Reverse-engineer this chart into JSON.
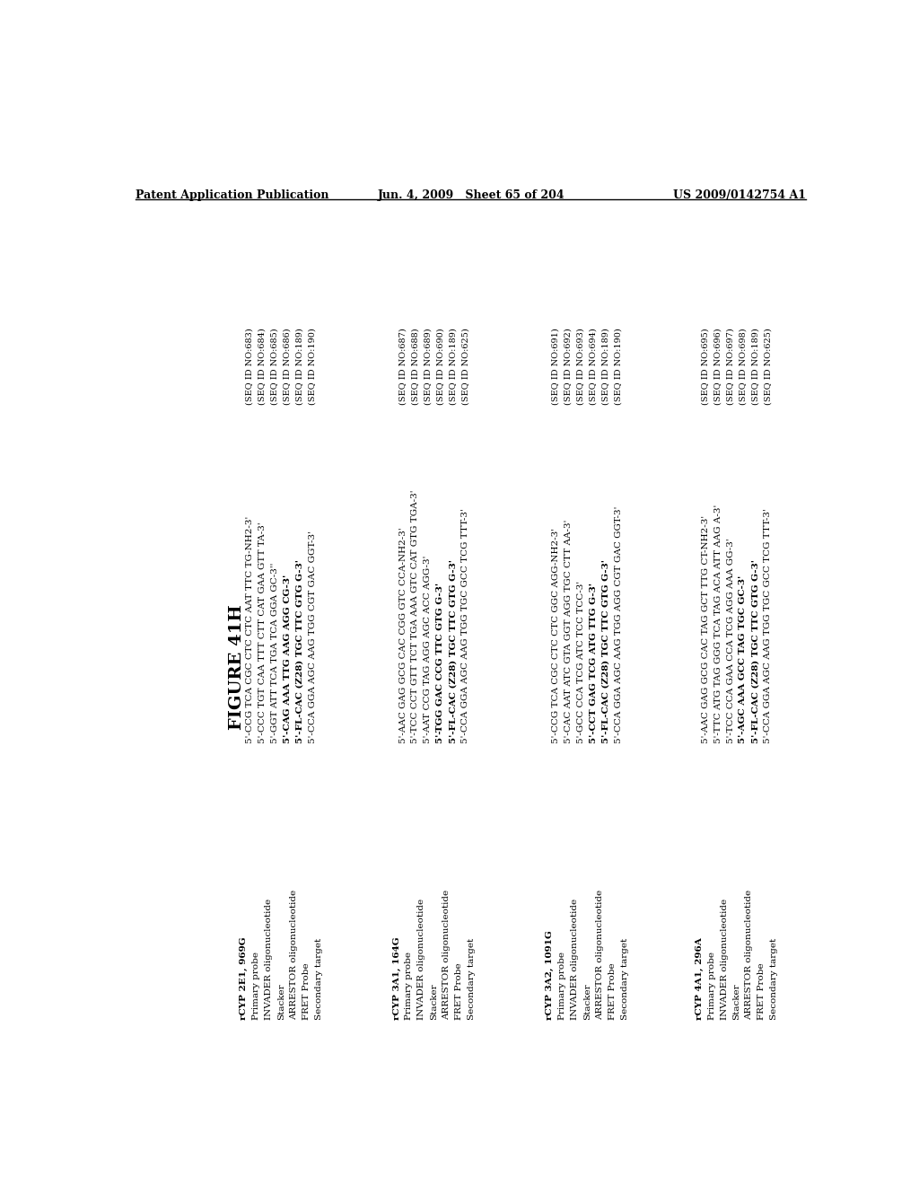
{
  "header_left": "Patent Application Publication",
  "header_center": "Jun. 4, 2009   Sheet 65 of 204",
  "header_right": "US 2009/0142754 A1",
  "figure_title": "FIGURE 41H",
  "sections": [
    {
      "label": "rCYP 2E1, 969G",
      "items": [
        "Primary probe",
        "INVADER oligonucleotide",
        "Stacker",
        "ARRESTOR oligonucleotide",
        "FRET Probe",
        "Secondary target"
      ],
      "sequences": [
        "5'-CCG TCA CGC CTC CTC AAT TTC TG-NH2-3'",
        "5'-CCC TGT CAA TTT CTT CAT GAA GTT TA-3'",
        "5'-GGT ATT TCA TGA TCA GGA GC-3''",
        "5'-CAG AAA TTG AAG AGG CG-3'",
        "5'-FL-CAC (Z28) TGC TTC GTG G-3'",
        "5'-CCA GGA AGC AAG TGG CGT GAC GGT-3'"
      ],
      "seq_ids": [
        "(SEQ ID NO:683)",
        "(SEQ ID NO:684)",
        "(SEQ ID NO:685)",
        "(SEQ ID NO:686)",
        "(SEQ ID NO:189)",
        "(SEQ ID NO:190)"
      ],
      "bold_seq_indices": [
        3,
        4
      ]
    },
    {
      "label": "rCYP 3A1, 164G",
      "items": [
        "Primary probe",
        "INVADER oligonucleotide",
        "Stacker",
        "ARRESTOR oligonucleotide",
        "FRET Probe",
        "Secondary target"
      ],
      "sequences": [
        "5'-AAC GAG GCG CAC CGG GTC CCA-NH2-3'",
        "5'-TCC CCT GTT TCT TGA AAA GTC CAT GTG TGA-3'",
        "5'-AAT CCG TAG AGG AGC ACC AGG-3'",
        "5'-TGG GAC CCG TTC GTG G-3'",
        "5'-FL-CAC (Z28) TGC TTC GTG G-3'",
        "5'-CCA GGA AGC AAG TGG TGC GCC TCG TTT-3'"
      ],
      "seq_ids": [
        "(SEQ ID NO:687)",
        "(SEQ ID NO:688)",
        "(SEQ ID NO:689)",
        "(SEQ ID NO:690)",
        "(SEQ ID NO:189)",
        "(SEQ ID NO:625)"
      ],
      "bold_seq_indices": [
        3,
        4
      ]
    },
    {
      "label": "rCYP 3A2, 1091G",
      "items": [
        "Primary probe",
        "INVADER oligonucleotide",
        "Stacker",
        "ARRESTOR oligonucleotide",
        "FRET Probe",
        "Secondary target"
      ],
      "sequences": [
        "5'-CCG TCA CGC CTC CTC GGC AGG-NH2-3'",
        "5'-CAC AAT ATC GTA GGT AGG TGC CTT AA-3'",
        "5'-GCC CCA TCG ATC TCC TCC-3'",
        "5'-CCT GAG TCG ATG TTG G-3'",
        "5'-FL-CAC (Z28) TGC TTC GTG G-3'",
        "5'-CCA GGA AGC AAG TGG AGG CGT GAC GGT-3'"
      ],
      "seq_ids": [
        "(SEQ ID NO:691)",
        "(SEQ ID NO:692)",
        "(SEQ ID NO:693)",
        "(SEQ ID NO:694)",
        "(SEQ ID NO:189)",
        "(SEQ ID NO:190)"
      ],
      "bold_seq_indices": [
        3,
        4
      ]
    },
    {
      "label": "rCYP 4A1, 296A",
      "items": [
        "Primary probe",
        "INVADER oligonucleotide",
        "Stacker",
        "ARRESTOR oligonucleotide",
        "FRET Probe",
        "Secondary target"
      ],
      "sequences": [
        "5'-AAC GAG GCG CAC TAG GCT TTG CT-NH2-3'",
        "5'-TTC ATG TAG GGG TCA TAG ACA ATT AAG A-3'",
        "5'-TCC CCA GAA CCA TCG AGG AAA GG-3'",
        "5'-AGC AAA GCC TAG TGC GC-3'",
        "5'-FL-CAC (Z28) TGC TTC GTG G-3'",
        "5'-CCA GGA AGC AAG TGG TGC GCC TCG TTT-3'"
      ],
      "seq_ids": [
        "(SEQ ID NO:695)",
        "(SEQ ID NO:696)",
        "(SEQ ID NO:697)",
        "(SEQ ID NO:698)",
        "(SEQ ID NO:189)",
        "(SEQ ID NO:625)"
      ],
      "bold_seq_indices": [
        3,
        4
      ]
    }
  ],
  "bg_color": "#ffffff",
  "text_color": "#000000",
  "header_fontsize": 9,
  "label_fontsize": 9,
  "item_fontsize": 7.5,
  "seq_fontsize": 7.5,
  "seqid_fontsize": 7.0,
  "title_fontsize": 14
}
